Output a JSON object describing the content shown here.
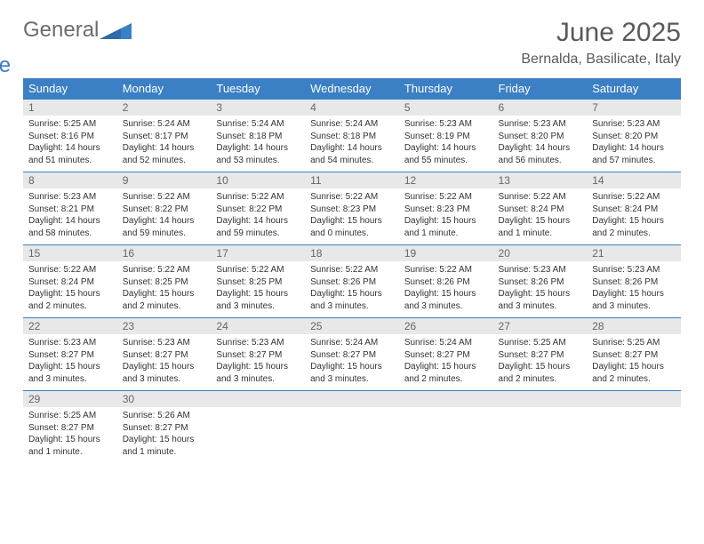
{
  "logo": {
    "general": "General",
    "blue": "Blue"
  },
  "header": {
    "title": "June 2025",
    "location": "Bernalda, Basilicate, Italy"
  },
  "colors": {
    "accent": "#3b7fc4",
    "daynum_bg": "#e8e8e8",
    "text_muted": "#6b6b6b"
  },
  "weekdays": [
    "Sunday",
    "Monday",
    "Tuesday",
    "Wednesday",
    "Thursday",
    "Friday",
    "Saturday"
  ],
  "weeks": [
    {
      "days": [
        {
          "num": "1",
          "sunrise": "Sunrise: 5:25 AM",
          "sunset": "Sunset: 8:16 PM",
          "daylight": "Daylight: 14 hours and 51 minutes."
        },
        {
          "num": "2",
          "sunrise": "Sunrise: 5:24 AM",
          "sunset": "Sunset: 8:17 PM",
          "daylight": "Daylight: 14 hours and 52 minutes."
        },
        {
          "num": "3",
          "sunrise": "Sunrise: 5:24 AM",
          "sunset": "Sunset: 8:18 PM",
          "daylight": "Daylight: 14 hours and 53 minutes."
        },
        {
          "num": "4",
          "sunrise": "Sunrise: 5:24 AM",
          "sunset": "Sunset: 8:18 PM",
          "daylight": "Daylight: 14 hours and 54 minutes."
        },
        {
          "num": "5",
          "sunrise": "Sunrise: 5:23 AM",
          "sunset": "Sunset: 8:19 PM",
          "daylight": "Daylight: 14 hours and 55 minutes."
        },
        {
          "num": "6",
          "sunrise": "Sunrise: 5:23 AM",
          "sunset": "Sunset: 8:20 PM",
          "daylight": "Daylight: 14 hours and 56 minutes."
        },
        {
          "num": "7",
          "sunrise": "Sunrise: 5:23 AM",
          "sunset": "Sunset: 8:20 PM",
          "daylight": "Daylight: 14 hours and 57 minutes."
        }
      ]
    },
    {
      "days": [
        {
          "num": "8",
          "sunrise": "Sunrise: 5:23 AM",
          "sunset": "Sunset: 8:21 PM",
          "daylight": "Daylight: 14 hours and 58 minutes."
        },
        {
          "num": "9",
          "sunrise": "Sunrise: 5:22 AM",
          "sunset": "Sunset: 8:22 PM",
          "daylight": "Daylight: 14 hours and 59 minutes."
        },
        {
          "num": "10",
          "sunrise": "Sunrise: 5:22 AM",
          "sunset": "Sunset: 8:22 PM",
          "daylight": "Daylight: 14 hours and 59 minutes."
        },
        {
          "num": "11",
          "sunrise": "Sunrise: 5:22 AM",
          "sunset": "Sunset: 8:23 PM",
          "daylight": "Daylight: 15 hours and 0 minutes."
        },
        {
          "num": "12",
          "sunrise": "Sunrise: 5:22 AM",
          "sunset": "Sunset: 8:23 PM",
          "daylight": "Daylight: 15 hours and 1 minute."
        },
        {
          "num": "13",
          "sunrise": "Sunrise: 5:22 AM",
          "sunset": "Sunset: 8:24 PM",
          "daylight": "Daylight: 15 hours and 1 minute."
        },
        {
          "num": "14",
          "sunrise": "Sunrise: 5:22 AM",
          "sunset": "Sunset: 8:24 PM",
          "daylight": "Daylight: 15 hours and 2 minutes."
        }
      ]
    },
    {
      "days": [
        {
          "num": "15",
          "sunrise": "Sunrise: 5:22 AM",
          "sunset": "Sunset: 8:24 PM",
          "daylight": "Daylight: 15 hours and 2 minutes."
        },
        {
          "num": "16",
          "sunrise": "Sunrise: 5:22 AM",
          "sunset": "Sunset: 8:25 PM",
          "daylight": "Daylight: 15 hours and 2 minutes."
        },
        {
          "num": "17",
          "sunrise": "Sunrise: 5:22 AM",
          "sunset": "Sunset: 8:25 PM",
          "daylight": "Daylight: 15 hours and 3 minutes."
        },
        {
          "num": "18",
          "sunrise": "Sunrise: 5:22 AM",
          "sunset": "Sunset: 8:26 PM",
          "daylight": "Daylight: 15 hours and 3 minutes."
        },
        {
          "num": "19",
          "sunrise": "Sunrise: 5:22 AM",
          "sunset": "Sunset: 8:26 PM",
          "daylight": "Daylight: 15 hours and 3 minutes."
        },
        {
          "num": "20",
          "sunrise": "Sunrise: 5:23 AM",
          "sunset": "Sunset: 8:26 PM",
          "daylight": "Daylight: 15 hours and 3 minutes."
        },
        {
          "num": "21",
          "sunrise": "Sunrise: 5:23 AM",
          "sunset": "Sunset: 8:26 PM",
          "daylight": "Daylight: 15 hours and 3 minutes."
        }
      ]
    },
    {
      "days": [
        {
          "num": "22",
          "sunrise": "Sunrise: 5:23 AM",
          "sunset": "Sunset: 8:27 PM",
          "daylight": "Daylight: 15 hours and 3 minutes."
        },
        {
          "num": "23",
          "sunrise": "Sunrise: 5:23 AM",
          "sunset": "Sunset: 8:27 PM",
          "daylight": "Daylight: 15 hours and 3 minutes."
        },
        {
          "num": "24",
          "sunrise": "Sunrise: 5:23 AM",
          "sunset": "Sunset: 8:27 PM",
          "daylight": "Daylight: 15 hours and 3 minutes."
        },
        {
          "num": "25",
          "sunrise": "Sunrise: 5:24 AM",
          "sunset": "Sunset: 8:27 PM",
          "daylight": "Daylight: 15 hours and 3 minutes."
        },
        {
          "num": "26",
          "sunrise": "Sunrise: 5:24 AM",
          "sunset": "Sunset: 8:27 PM",
          "daylight": "Daylight: 15 hours and 2 minutes."
        },
        {
          "num": "27",
          "sunrise": "Sunrise: 5:25 AM",
          "sunset": "Sunset: 8:27 PM",
          "daylight": "Daylight: 15 hours and 2 minutes."
        },
        {
          "num": "28",
          "sunrise": "Sunrise: 5:25 AM",
          "sunset": "Sunset: 8:27 PM",
          "daylight": "Daylight: 15 hours and 2 minutes."
        }
      ]
    },
    {
      "days": [
        {
          "num": "29",
          "sunrise": "Sunrise: 5:25 AM",
          "sunset": "Sunset: 8:27 PM",
          "daylight": "Daylight: 15 hours and 1 minute."
        },
        {
          "num": "30",
          "sunrise": "Sunrise: 5:26 AM",
          "sunset": "Sunset: 8:27 PM",
          "daylight": "Daylight: 15 hours and 1 minute."
        },
        {
          "empty": true
        },
        {
          "empty": true
        },
        {
          "empty": true
        },
        {
          "empty": true
        },
        {
          "empty": true
        }
      ]
    }
  ]
}
